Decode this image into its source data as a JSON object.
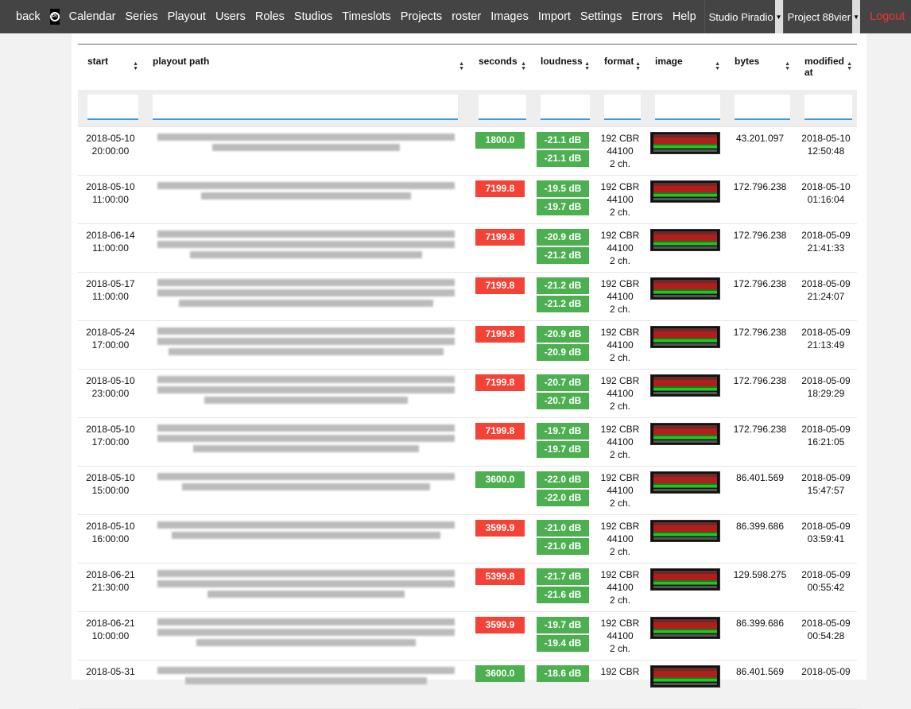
{
  "nav": {
    "back": "back",
    "items": [
      "Calendar",
      "Series",
      "Playout",
      "Users",
      "Roles",
      "Studios",
      "Timeslots",
      "Projects",
      "roster",
      "Images",
      "Import",
      "Settings",
      "Errors",
      "Help"
    ],
    "studio": "Studio Piradio",
    "project": "Project 88vier",
    "logout": "Logout",
    "user": "mi"
  },
  "columns": [
    "start",
    "playout path",
    "seconds",
    "loudness",
    "format",
    "image",
    "bytes",
    "modified at"
  ],
  "colors": {
    "ok": "#4caf50",
    "warn": "#f44336",
    "nav": "#444444",
    "logout": "#ee3333"
  },
  "rows": [
    {
      "start": [
        "2018-05-10",
        "20:00:00"
      ],
      "lines": 2,
      "seconds": "1800.0",
      "sec_ok": true,
      "loud": [
        "-21.1 dB",
        "-21.1 dB"
      ],
      "format": [
        "192 CBR",
        "44100",
        "2 ch."
      ],
      "bytes": "43.201.097",
      "modified": [
        "2018-05-10",
        "12:50:48"
      ]
    },
    {
      "start": [
        "2018-05-10",
        "11:00:00"
      ],
      "lines": 2,
      "seconds": "7199.8",
      "sec_ok": false,
      "loud": [
        "-19.5 dB",
        "-19.7 dB"
      ],
      "format": [
        "192 CBR",
        "44100",
        "2 ch."
      ],
      "bytes": "172.796.238",
      "modified": [
        "2018-05-10",
        "01:16:04"
      ]
    },
    {
      "start": [
        "2018-06-14",
        "11:00:00"
      ],
      "lines": 3,
      "seconds": "7199.8",
      "sec_ok": false,
      "loud": [
        "-20.9 dB",
        "-21.2 dB"
      ],
      "format": [
        "192 CBR",
        "44100",
        "2 ch."
      ],
      "bytes": "172.796.238",
      "modified": [
        "2018-05-09",
        "21:41:33"
      ]
    },
    {
      "start": [
        "2018-05-17",
        "11:00:00"
      ],
      "lines": 3,
      "seconds": "7199.8",
      "sec_ok": false,
      "loud": [
        "-21.2 dB",
        "-21.2 dB"
      ],
      "format": [
        "192 CBR",
        "44100",
        "2 ch."
      ],
      "bytes": "172.796.238",
      "modified": [
        "2018-05-09",
        "21:24:07"
      ]
    },
    {
      "start": [
        "2018-05-24",
        "17:00:00"
      ],
      "lines": 3,
      "seconds": "7199.8",
      "sec_ok": false,
      "loud": [
        "-20.9 dB",
        "-20.9 dB"
      ],
      "format": [
        "192 CBR",
        "44100",
        "2 ch."
      ],
      "bytes": "172.796.238",
      "modified": [
        "2018-05-09",
        "21:13:49"
      ]
    },
    {
      "start": [
        "2018-05-10",
        "23:00:00"
      ],
      "lines": 3,
      "seconds": "7199.8",
      "sec_ok": false,
      "loud": [
        "-20.7 dB",
        "-20.7 dB"
      ],
      "format": [
        "192 CBR",
        "44100",
        "2 ch."
      ],
      "bytes": "172.796.238",
      "modified": [
        "2018-05-09",
        "18:29:29"
      ]
    },
    {
      "start": [
        "2018-05-10",
        "17:00:00"
      ],
      "lines": 3,
      "seconds": "7199.8",
      "sec_ok": false,
      "loud": [
        "-19.7 dB",
        "-19.7 dB"
      ],
      "format": [
        "192 CBR",
        "44100",
        "2 ch."
      ],
      "bytes": "172.796.238",
      "modified": [
        "2018-05-09",
        "16:21:05"
      ]
    },
    {
      "start": [
        "2018-05-10",
        "15:00:00"
      ],
      "lines": 2,
      "seconds": "3600.0",
      "sec_ok": true,
      "loud": [
        "-22.0 dB",
        "-22.0 dB"
      ],
      "format": [
        "192 CBR",
        "44100",
        "2 ch."
      ],
      "bytes": "86.401.569",
      "modified": [
        "2018-05-09",
        "15:47:57"
      ]
    },
    {
      "start": [
        "2018-05-10",
        "16:00:00"
      ],
      "lines": 2,
      "seconds": "3599.9",
      "sec_ok": false,
      "loud": [
        "-21.0 dB",
        "-21.0 dB"
      ],
      "format": [
        "192 CBR",
        "44100",
        "2 ch."
      ],
      "bytes": "86.399.686",
      "modified": [
        "2018-05-09",
        "03:59:41"
      ]
    },
    {
      "start": [
        "2018-06-21",
        "21:30:00"
      ],
      "lines": 3,
      "seconds": "5399.8",
      "sec_ok": false,
      "loud": [
        "-21.7 dB",
        "-21.6 dB"
      ],
      "format": [
        "192 CBR",
        "44100",
        "2 ch."
      ],
      "bytes": "129.598.275",
      "modified": [
        "2018-05-09",
        "00:55:42"
      ]
    },
    {
      "start": [
        "2018-06-21",
        "10:00:00"
      ],
      "lines": 3,
      "seconds": "3599.9",
      "sec_ok": false,
      "loud": [
        "-19.7 dB",
        "-19.4 dB"
      ],
      "format": [
        "192 CBR",
        "44100",
        "2 ch."
      ],
      "bytes": "86.399.686",
      "modified": [
        "2018-05-09",
        "00:54:28"
      ]
    },
    {
      "start": [
        "2018-05-31",
        ""
      ],
      "lines": 2,
      "seconds": "3600.0",
      "sec_ok": true,
      "loud": [
        "-18.6 dB",
        ""
      ],
      "format": [
        "192 CBR",
        "",
        ""
      ],
      "bytes": "86.401.569",
      "modified": [
        "2018-05-09",
        ""
      ]
    }
  ]
}
